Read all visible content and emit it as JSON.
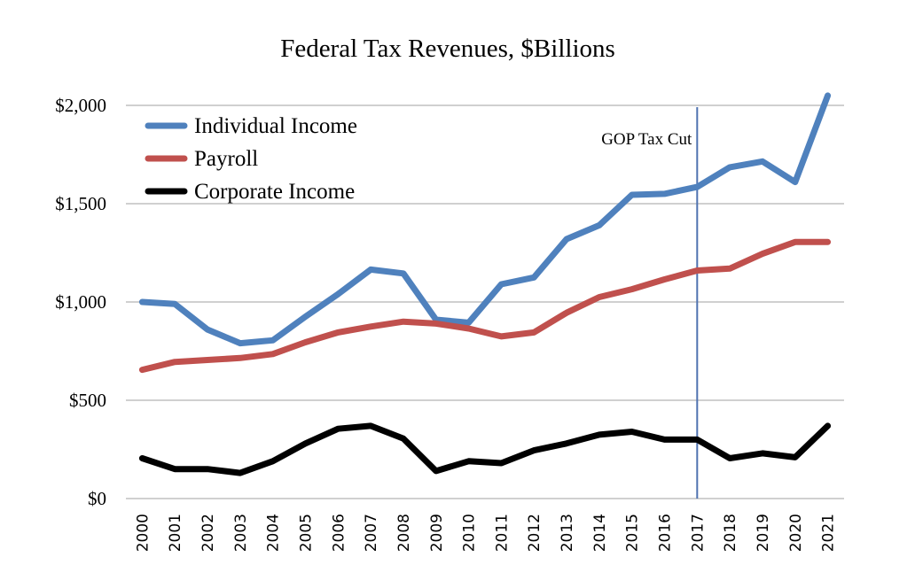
{
  "chart_data": {
    "type": "line",
    "title": "Federal Tax Revenues, $Billions",
    "xlabel": "",
    "ylabel": "",
    "ylim": [
      0,
      2000
    ],
    "yticks": [
      0,
      500,
      1000,
      1500,
      2000
    ],
    "ytick_labels": [
      "$0",
      "$500",
      "$1,000",
      "$1,500",
      "$2,000"
    ],
    "grid": "horizontal",
    "legend_position": "top-left",
    "x": [
      "2000",
      "2001",
      "2002",
      "2003",
      "2004",
      "2005",
      "2006",
      "2007",
      "2008",
      "2009",
      "2010",
      "2011",
      "2012",
      "2013",
      "2014",
      "2015",
      "2016",
      "2017",
      "2018",
      "2019",
      "2020",
      "2021"
    ],
    "series": [
      {
        "name": "Individual Income",
        "color": "#4F81BD",
        "values": [
          1000,
          990,
          860,
          790,
          805,
          925,
          1040,
          1165,
          1145,
          910,
          895,
          1090,
          1125,
          1320,
          1390,
          1545,
          1550,
          1585,
          1685,
          1715,
          1610,
          2050
        ]
      },
      {
        "name": "Payroll",
        "color": "#C0504D",
        "values": [
          655,
          695,
          705,
          715,
          735,
          795,
          845,
          875,
          900,
          890,
          865,
          825,
          845,
          945,
          1025,
          1065,
          1115,
          1160,
          1170,
          1245,
          1305,
          1305
        ]
      },
      {
        "name": "Corporate Income",
        "color": "#000000",
        "values": [
          205,
          150,
          150,
          130,
          190,
          280,
          355,
          370,
          305,
          140,
          190,
          180,
          245,
          280,
          325,
          340,
          300,
          300,
          205,
          230,
          210,
          370
        ]
      }
    ],
    "annotations": [
      {
        "text": "GOP Tax Cut",
        "type": "vertical-line",
        "x": "2017",
        "color": "#4F72B0"
      }
    ]
  }
}
